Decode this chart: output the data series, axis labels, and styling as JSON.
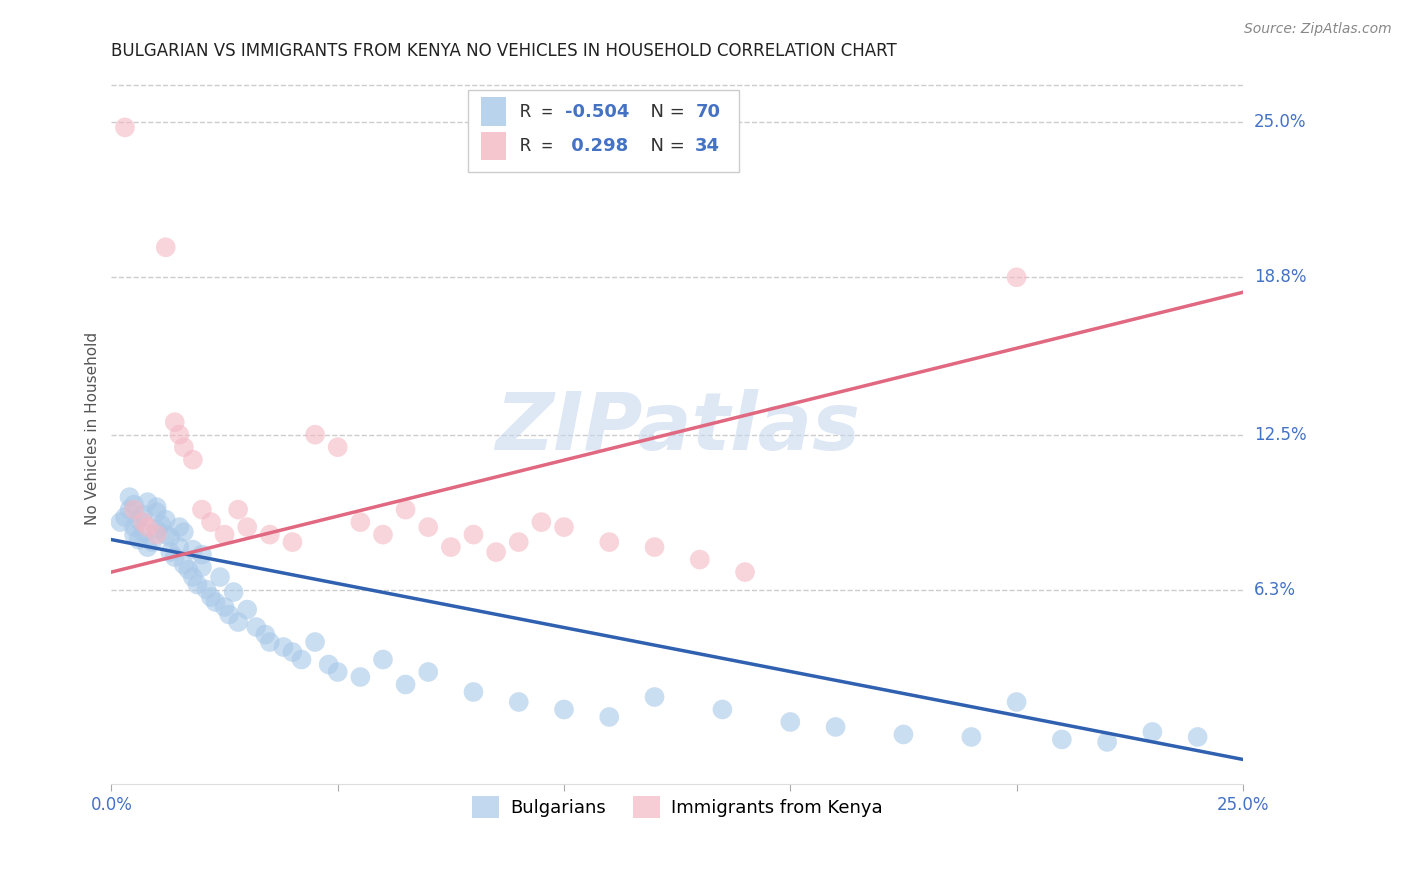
{
  "title": "BULGARIAN VS IMMIGRANTS FROM KENYA NO VEHICLES IN HOUSEHOLD CORRELATION CHART",
  "source": "Source: ZipAtlas.com",
  "ylabel_label": "No Vehicles in Household",
  "xmin": 0.0,
  "xmax": 0.25,
  "ymin": -0.015,
  "ymax": 0.27,
  "watermark": "ZIPatlas",
  "blue_color": "#a8c8e8",
  "pink_color": "#f4b8c4",
  "blue_line_color": "#3060b0",
  "pink_line_color": "#e06880",
  "blue_R": -0.504,
  "blue_N": 70,
  "pink_R": 0.298,
  "pink_N": 34,
  "ylabel_right_values": [
    0.25,
    0.188,
    0.125,
    0.063
  ],
  "ylabel_right_labels": [
    "25.0%",
    "18.8%",
    "12.5%",
    "6.3%"
  ],
  "grid_color": "#cccccc",
  "blue_scatter_x": [
    0.002,
    0.003,
    0.004,
    0.004,
    0.005,
    0.005,
    0.005,
    0.006,
    0.006,
    0.007,
    0.007,
    0.008,
    0.008,
    0.009,
    0.01,
    0.01,
    0.01,
    0.011,
    0.012,
    0.012,
    0.013,
    0.013,
    0.014,
    0.015,
    0.015,
    0.016,
    0.016,
    0.017,
    0.018,
    0.018,
    0.019,
    0.02,
    0.02,
    0.021,
    0.022,
    0.023,
    0.024,
    0.025,
    0.026,
    0.027,
    0.028,
    0.03,
    0.032,
    0.034,
    0.035,
    0.038,
    0.04,
    0.042,
    0.045,
    0.048,
    0.05,
    0.055,
    0.06,
    0.065,
    0.07,
    0.08,
    0.09,
    0.1,
    0.11,
    0.12,
    0.135,
    0.15,
    0.16,
    0.175,
    0.19,
    0.2,
    0.21,
    0.22,
    0.23,
    0.24
  ],
  "blue_scatter_y": [
    0.09,
    0.092,
    0.095,
    0.1,
    0.085,
    0.088,
    0.097,
    0.083,
    0.091,
    0.086,
    0.093,
    0.08,
    0.098,
    0.082,
    0.087,
    0.094,
    0.096,
    0.089,
    0.085,
    0.091,
    0.078,
    0.084,
    0.076,
    0.08,
    0.088,
    0.073,
    0.086,
    0.071,
    0.068,
    0.079,
    0.065,
    0.072,
    0.077,
    0.063,
    0.06,
    0.058,
    0.068,
    0.056,
    0.053,
    0.062,
    0.05,
    0.055,
    0.048,
    0.045,
    0.042,
    0.04,
    0.038,
    0.035,
    0.042,
    0.033,
    0.03,
    0.028,
    0.035,
    0.025,
    0.03,
    0.022,
    0.018,
    0.015,
    0.012,
    0.02,
    0.015,
    0.01,
    0.008,
    0.005,
    0.004,
    0.018,
    0.003,
    0.002,
    0.006,
    0.004
  ],
  "pink_scatter_x": [
    0.003,
    0.005,
    0.007,
    0.008,
    0.01,
    0.012,
    0.014,
    0.015,
    0.016,
    0.018,
    0.02,
    0.022,
    0.025,
    0.028,
    0.03,
    0.035,
    0.04,
    0.045,
    0.05,
    0.055,
    0.06,
    0.065,
    0.07,
    0.075,
    0.08,
    0.085,
    0.09,
    0.095,
    0.1,
    0.11,
    0.12,
    0.13,
    0.14,
    0.2
  ],
  "pink_scatter_y": [
    0.248,
    0.095,
    0.09,
    0.088,
    0.085,
    0.2,
    0.13,
    0.125,
    0.12,
    0.115,
    0.095,
    0.09,
    0.085,
    0.095,
    0.088,
    0.085,
    0.082,
    0.125,
    0.12,
    0.09,
    0.085,
    0.095,
    0.088,
    0.08,
    0.085,
    0.078,
    0.082,
    0.09,
    0.088,
    0.082,
    0.08,
    0.075,
    0.07,
    0.188
  ]
}
